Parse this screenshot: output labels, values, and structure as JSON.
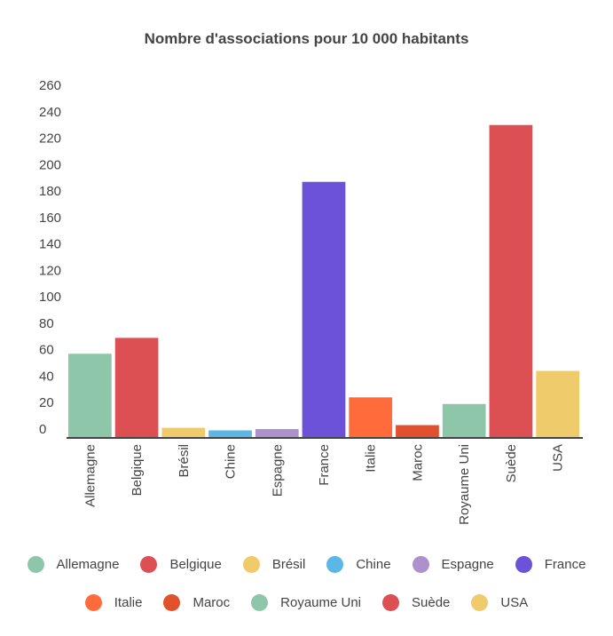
{
  "chart_data": {
    "type": "bar",
    "title": "Nombre d'associations pour 10 000 habitants",
    "categories": [
      "Allemagne",
      "Belgique",
      "Brésil",
      "Chine",
      "Espagne",
      "France",
      "Italie",
      "Maroc",
      "Royaume Uni",
      "Suède",
      "USA"
    ],
    "values": [
      63,
      75,
      7,
      5,
      6,
      193,
      30,
      9,
      25,
      236,
      50
    ],
    "colors": [
      "#8ec6aa",
      "#dc5054",
      "#f0cb6b",
      "#5bb7e6",
      "#ad91cc",
      "#6c52d8",
      "#ff6b3a",
      "#e2502c",
      "#8ec6aa",
      "#dc5054",
      "#f0cb6b"
    ],
    "yticks": [
      0,
      20,
      40,
      60,
      80,
      100,
      120,
      140,
      160,
      180,
      200,
      220,
      240,
      260
    ],
    "ylim": [
      0,
      260
    ],
    "grid": false,
    "legend_position": "bottom"
  }
}
